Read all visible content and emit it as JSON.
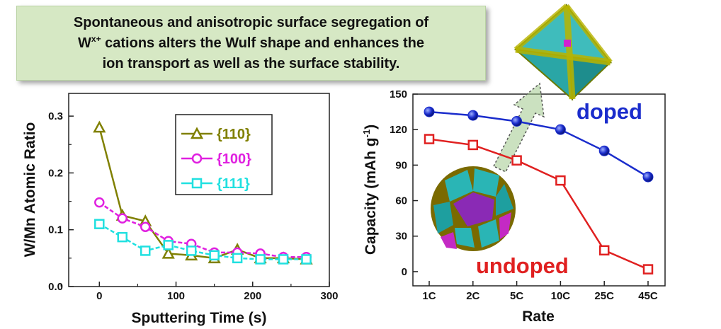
{
  "banner": {
    "line1": "Spontaneous and anisotropic surface segregation of",
    "line2_pre": "W",
    "line2_sup": "x+",
    "line2_post": " cations alters the Wulf shape and enhances the",
    "line3": "ion transport as well as the surface stability."
  },
  "chart_data": [
    {
      "type": "line",
      "xlabel": "Sputtering Time (s)",
      "ylabel": "W/Mn Atomic Ratio",
      "xlim": [
        -40,
        300
      ],
      "ylim": [
        0.0,
        0.34
      ],
      "x_ticks": [
        "0",
        "100",
        "200",
        "300"
      ],
      "y_ticks": [
        "0.0",
        "0.1",
        "0.2",
        "0.3"
      ],
      "legend_position": "top-right",
      "series": [
        {
          "name": "{110}",
          "color": "#808000",
          "marker": "triangle",
          "x": [
            0,
            30,
            60,
            90,
            120,
            150,
            180,
            210,
            240,
            270
          ],
          "y": [
            0.28,
            0.125,
            0.115,
            0.058,
            0.055,
            0.05,
            0.065,
            0.05,
            0.05,
            0.048
          ]
        },
        {
          "name": "{100}",
          "color": "#e020e0",
          "marker": "circle",
          "x": [
            0,
            30,
            60,
            90,
            120,
            150,
            180,
            210,
            240,
            270
          ],
          "y": [
            0.148,
            0.12,
            0.105,
            0.08,
            0.075,
            0.06,
            0.06,
            0.058,
            0.052,
            0.052
          ]
        },
        {
          "name": "{111}",
          "color": "#20e0e0",
          "marker": "square",
          "x": [
            0,
            30,
            60,
            90,
            120,
            150,
            180,
            210,
            240,
            270
          ],
          "y": [
            0.11,
            0.087,
            0.063,
            0.073,
            0.063,
            0.055,
            0.05,
            0.048,
            0.048,
            0.048
          ]
        }
      ]
    },
    {
      "type": "line",
      "xlabel": "Rate",
      "ylabel": "Capacity (mAh g",
      "ylabel_sup": "-1",
      "ylabel_close": ")",
      "categories": [
        "1C",
        "2C",
        "5C",
        "10C",
        "25C",
        "45C"
      ],
      "ylim": [
        -12,
        150
      ],
      "y_ticks": [
        "0",
        "30",
        "60",
        "90",
        "120",
        "150"
      ],
      "series": [
        {
          "name": "doped",
          "color": "#1a2ccc",
          "marker": "filled-circle",
          "values": [
            135,
            132,
            127,
            120,
            102,
            80
          ]
        },
        {
          "name": "undoped",
          "color": "#e02020",
          "marker": "open-square",
          "values": [
            112,
            107,
            94,
            77,
            18,
            2
          ]
        }
      ]
    }
  ]
}
